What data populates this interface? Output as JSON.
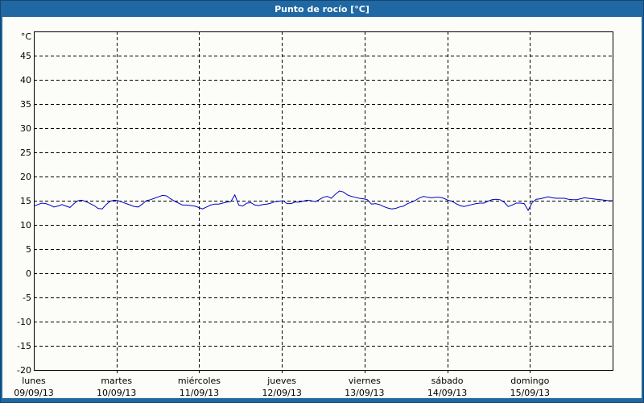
{
  "window": {
    "title": "Punto de rocío [°C]"
  },
  "colors": {
    "title_bar": "#1f68a3",
    "frame": "#14466f",
    "plot_background": "#fcfdf8",
    "axis": "#000000",
    "grid": "#000000",
    "line": "#0000c8",
    "title_text": "#ffffff",
    "label_text": "#000000"
  },
  "chart_data": {
    "type": "line",
    "title": "Punto de rocío [°C]",
    "y_axis": {
      "unit_label": "°C",
      "min": -20,
      "max": 50,
      "tick_step": 5,
      "tick_labels": [
        "45",
        "40",
        "35",
        "30",
        "25",
        "20",
        "15",
        "10",
        "5",
        "0",
        "-5",
        "-10",
        "-15",
        "-20"
      ],
      "tick_values": [
        45,
        40,
        35,
        30,
        25,
        20,
        15,
        10,
        5,
        0,
        -5,
        -10,
        -15,
        -20
      ]
    },
    "x_axis": {
      "num_days": 7,
      "days": [
        {
          "name": "lunes",
          "date": "09/09/13"
        },
        {
          "name": "martes",
          "date": "10/09/13"
        },
        {
          "name": "miércoles",
          "date": "11/09/13"
        },
        {
          "name": "jueves",
          "date": "12/09/13"
        },
        {
          "name": "viernes",
          "date": "13/09/13"
        },
        {
          "name": "sábado",
          "date": "14/09/13"
        },
        {
          "name": "domingo",
          "date": "15/09/13"
        }
      ]
    },
    "grid": {
      "style": "dashed",
      "horizontal": true,
      "vertical_at_day_boundaries": true
    },
    "legend": "none",
    "series": [
      {
        "name": "Punto de rocío",
        "color": "#0000c8",
        "unit": "°C",
        "sampling": "145 points uniformly spanning lunes 09/09/13 00:00 to domingo 15/09/13 24:00",
        "values": [
          13.9,
          14.2,
          14.5,
          14.4,
          14.1,
          13.7,
          13.9,
          14.2,
          13.9,
          13.6,
          14.4,
          15.0,
          15.1,
          14.8,
          14.4,
          14.0,
          13.4,
          13.3,
          14.2,
          14.9,
          15.1,
          15.0,
          14.7,
          14.4,
          14.1,
          13.8,
          13.7,
          14.3,
          15.0,
          15.2,
          15.5,
          15.8,
          16.1,
          16.0,
          15.4,
          14.9,
          14.5,
          14.1,
          14.1,
          14.0,
          13.9,
          13.6,
          13.3,
          13.7,
          14.1,
          14.3,
          14.3,
          14.5,
          14.7,
          14.8,
          16.2,
          14.1,
          13.9,
          14.5,
          14.6,
          14.1,
          14.0,
          14.2,
          14.3,
          14.5,
          14.8,
          14.9,
          15.0,
          14.4,
          14.4,
          14.7,
          14.7,
          14.9,
          15.1,
          15.0,
          14.8,
          15.2,
          15.7,
          15.9,
          15.5,
          16.3,
          17.0,
          16.8,
          16.2,
          15.9,
          15.7,
          15.5,
          15.4,
          15.2,
          14.3,
          14.4,
          14.2,
          13.8,
          13.5,
          13.3,
          13.4,
          13.7,
          13.9,
          14.4,
          14.7,
          15.1,
          15.6,
          15.9,
          15.7,
          15.6,
          15.7,
          15.7,
          15.5,
          15.1,
          14.9,
          14.4,
          14.0,
          13.8,
          14.0,
          14.2,
          14.4,
          14.5,
          14.5,
          14.9,
          15.2,
          15.3,
          15.2,
          14.7,
          13.8,
          14.1,
          14.5,
          14.5,
          14.4,
          13.0,
          14.6,
          15.3,
          15.4,
          15.6,
          15.8,
          15.6,
          15.5,
          15.5,
          15.5,
          15.3,
          15.2,
          15.2,
          15.4,
          15.6,
          15.5,
          15.4,
          15.3,
          15.2,
          15.1,
          15.0,
          15.0
        ]
      }
    ]
  }
}
